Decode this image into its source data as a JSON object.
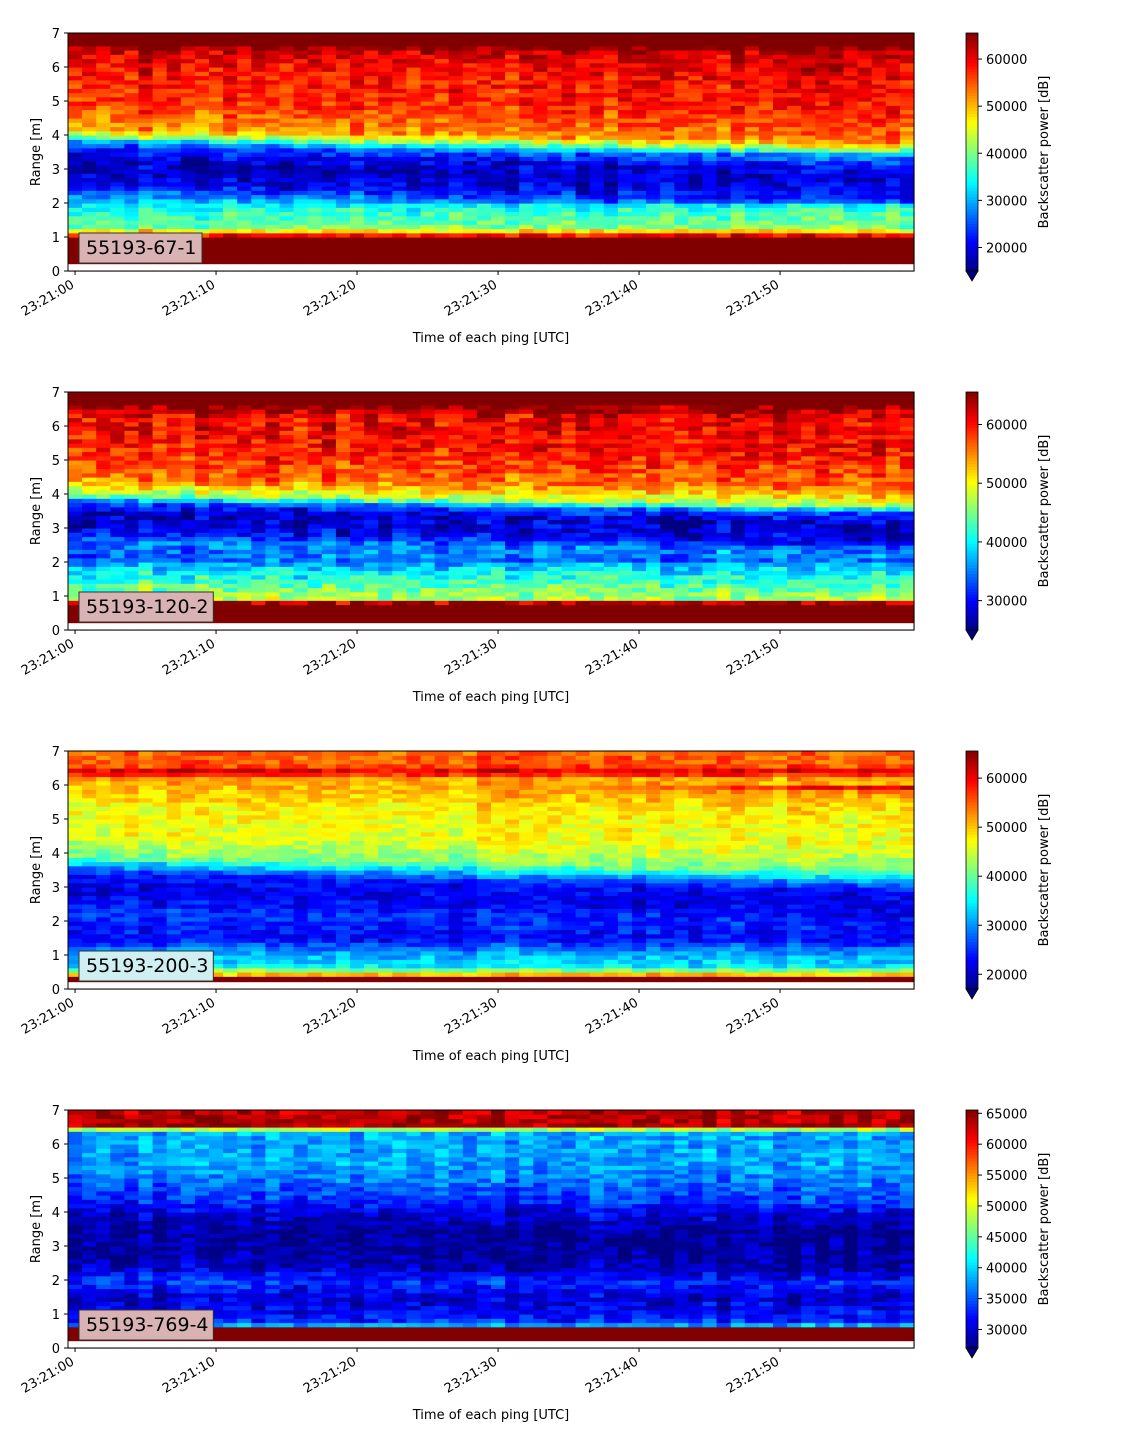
{
  "figure": {
    "xlabel": "Time of each ping [UTC]",
    "ylabel": "Range [m]",
    "colorbar_label": "Backscatter power [dB]",
    "colormap": "jet",
    "x_ticks": [
      "23:21:00",
      "23:21:10",
      "23:21:20",
      "23:21:30",
      "23:21:40",
      "23:21:50"
    ]
  },
  "chart_data": [
    {
      "type": "heatmap",
      "annotation": "55193-67-1",
      "xlabel": "Time of each ping [UTC]",
      "ylabel": "Range [m]",
      "x_ticks": [
        "23:21:00",
        "23:21:10",
        "23:21:20",
        "23:21:30",
        "23:21:40",
        "23:21:50"
      ],
      "xlim_seconds": [
        -0.5,
        59.5
      ],
      "ylim": [
        0,
        7
      ],
      "y_ticks": [
        0,
        1,
        2,
        3,
        4,
        5,
        6,
        7
      ],
      "colorbar": {
        "label": "Backscatter power [dB]",
        "min": 15000,
        "max": 65535,
        "ticks": [
          20000,
          30000,
          40000,
          50000,
          60000
        ],
        "extend": "min"
      },
      "profile": [
        [
          0,
          65535
        ],
        [
          0.2,
          65535
        ],
        [
          1.0,
          65535
        ],
        [
          1.15,
          50000
        ],
        [
          1.3,
          40000
        ],
        [
          1.8,
          36000
        ],
        [
          2.15,
          31000
        ],
        [
          2.5,
          22000
        ],
        [
          3.0,
          18000
        ],
        [
          3.4,
          20000
        ],
        [
          3.75,
          27000
        ],
        [
          3.95,
          40000
        ],
        [
          4.2,
          52000
        ],
        [
          5.0,
          57000
        ],
        [
          6.0,
          59000
        ],
        [
          6.5,
          62000
        ],
        [
          6.6,
          65535
        ],
        [
          7.0,
          65535
        ]
      ],
      "boundary_drift_m": [
        3.75,
        3.35
      ],
      "label_box_color": "#d9b3b3",
      "noise": 7000,
      "seed": 11
    },
    {
      "type": "heatmap",
      "annotation": "55193-120-2",
      "xlabel": "Time of each ping [UTC]",
      "ylabel": "Range [m]",
      "x_ticks": [
        "23:21:00",
        "23:21:10",
        "23:21:20",
        "23:21:30",
        "23:21:40",
        "23:21:50"
      ],
      "xlim_seconds": [
        -0.5,
        59.5
      ],
      "ylim": [
        0,
        7
      ],
      "y_ticks": [
        0,
        1,
        2,
        3,
        4,
        5,
        6,
        7
      ],
      "colorbar": {
        "label": "Backscatter power [dB]",
        "min": 25000,
        "max": 65535,
        "ticks": [
          30000,
          40000,
          50000,
          60000
        ],
        "extend": "min"
      },
      "profile": [
        [
          0,
          65535
        ],
        [
          0.2,
          65535
        ],
        [
          0.8,
          65535
        ],
        [
          0.9,
          47000
        ],
        [
          1.3,
          44000
        ],
        [
          1.7,
          40000
        ],
        [
          2.2,
          34000
        ],
        [
          2.6,
          36000
        ],
        [
          3.0,
          29000
        ],
        [
          3.5,
          28000
        ],
        [
          3.8,
          34000
        ],
        [
          4.0,
          47000
        ],
        [
          4.5,
          56000
        ],
        [
          5.5,
          60000
        ],
        [
          6.3,
          61000
        ],
        [
          6.6,
          65535
        ],
        [
          7.0,
          65535
        ]
      ],
      "boundary_drift_m": [
        3.8,
        3.45
      ],
      "label_box_color": "#d9b3b3",
      "noise": 6500,
      "seed": 23
    },
    {
      "type": "heatmap",
      "annotation": "55193-200-3",
      "xlabel": "Time of each ping [UTC]",
      "ylabel": "Range [m]",
      "x_ticks": [
        "23:21:00",
        "23:21:10",
        "23:21:20",
        "23:21:30",
        "23:21:40",
        "23:21:50"
      ],
      "xlim_seconds": [
        -0.5,
        59.5
      ],
      "ylim": [
        0,
        7
      ],
      "y_ticks": [
        0,
        1,
        2,
        3,
        4,
        5,
        6,
        7
      ],
      "colorbar": {
        "label": "Backscatter power [dB]",
        "min": 17000,
        "max": 65535,
        "ticks": [
          20000,
          30000,
          40000,
          50000,
          60000
        ],
        "extend": "min"
      },
      "profile": [
        [
          0,
          65535
        ],
        [
          0.2,
          65535
        ],
        [
          0.35,
          65535
        ],
        [
          0.45,
          48000
        ],
        [
          0.7,
          34000
        ],
        [
          1.0,
          32000
        ],
        [
          1.5,
          23000
        ],
        [
          2.2,
          26000
        ],
        [
          2.8,
          22000
        ],
        [
          3.3,
          23000
        ],
        [
          3.6,
          30000
        ],
        [
          3.9,
          41000
        ],
        [
          4.5,
          46000
        ],
        [
          5.5,
          48000
        ],
        [
          6.2,
          52000
        ],
        [
          6.4,
          62000
        ],
        [
          6.6,
          55000
        ],
        [
          7.0,
          55000
        ]
      ],
      "boundary_drift_m": [
        3.55,
        3.1
      ],
      "label_box_color": "#cfeff2",
      "noise": 5500,
      "seed": 37
    },
    {
      "type": "heatmap",
      "annotation": "55193-769-4",
      "xlabel": "Time of each ping [UTC]",
      "ylabel": "Range [m]",
      "x_ticks": [
        "23:21:00",
        "23:21:10",
        "23:21:20",
        "23:21:30",
        "23:21:40",
        "23:21:50"
      ],
      "xlim_seconds": [
        -0.5,
        59.5
      ],
      "ylim": [
        0,
        7
      ],
      "y_ticks": [
        0,
        1,
        2,
        3,
        4,
        5,
        6,
        7
      ],
      "colorbar": {
        "label": "Backscatter power [dB]",
        "min": 27000,
        "max": 65535,
        "ticks": [
          30000,
          35000,
          40000,
          45000,
          50000,
          55000,
          60000,
          65000
        ],
        "extend": "min"
      },
      "profile": [
        [
          0,
          65535
        ],
        [
          0.2,
          65535
        ],
        [
          0.6,
          65535
        ],
        [
          0.7,
          34000
        ],
        [
          1.0,
          32000
        ],
        [
          1.5,
          30000
        ],
        [
          2.0,
          34000
        ],
        [
          2.5,
          29000
        ],
        [
          3.5,
          27500
        ],
        [
          4.0,
          30000
        ],
        [
          4.5,
          34000
        ],
        [
          5.5,
          38000
        ],
        [
          6.4,
          38000
        ],
        [
          6.5,
          64000
        ],
        [
          7.0,
          63000
        ]
      ],
      "boundary_drift_m": [
        3.9,
        3.7
      ],
      "label_box_color": "#d9b3b3",
      "noise": 5000,
      "seed": 53
    }
  ]
}
